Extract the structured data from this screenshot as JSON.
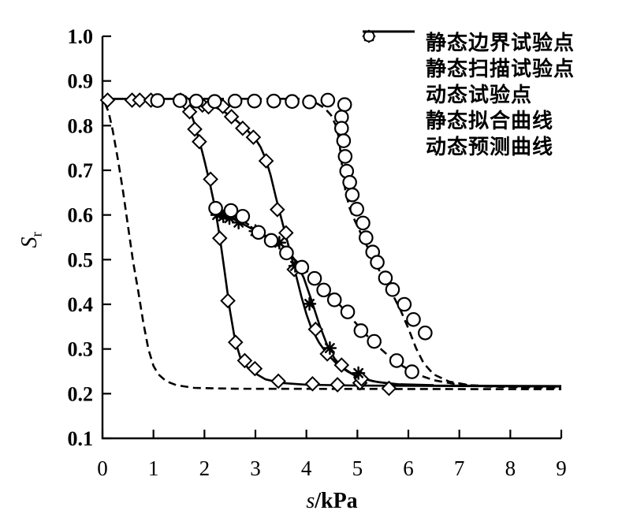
{
  "chart_data": {
    "type": "line",
    "title": "",
    "xlabel_italic": "s",
    "xlabel_unit": "/kPa",
    "ylabel_main": "S",
    "ylabel_sub": "r",
    "xlim": [
      0,
      9
    ],
    "ylim": [
      0.1,
      1.0
    ],
    "xticks": [
      0,
      1,
      2,
      3,
      4,
      5,
      6,
      7,
      8,
      9
    ],
    "xtick_labels": [
      "0",
      "1",
      "2",
      "3",
      "4",
      "5",
      "6",
      "7",
      "8",
      "9"
    ],
    "yticks": [
      0.1,
      0.2,
      0.3,
      0.4,
      0.5,
      0.6,
      0.7,
      0.8,
      0.9,
      1.0
    ],
    "ytick_labels": [
      "0.1",
      "0.2",
      "0.3",
      "0.4",
      "0.5",
      "0.6",
      "0.7",
      "0.8",
      "0.9",
      "1.0"
    ],
    "grid": false,
    "legend_position": "top-right-inside",
    "line_color": "#000000",
    "background_color": "#ffffff",
    "series": [
      {
        "name": "静态边界试验点",
        "kind": "scatter",
        "marker": "diamond",
        "points": [
          [
            0.1,
            0.857
          ],
          [
            0.58,
            0.857
          ],
          [
            0.73,
            0.857
          ],
          [
            0.95,
            0.857
          ],
          [
            1.53,
            0.857
          ],
          [
            1.63,
            0.851
          ],
          [
            1.71,
            0.831
          ],
          [
            1.81,
            0.792
          ],
          [
            1.9,
            0.764
          ],
          [
            2.12,
            0.68
          ],
          [
            2.3,
            0.548
          ],
          [
            2.46,
            0.408
          ],
          [
            2.61,
            0.315
          ],
          [
            2.79,
            0.274
          ],
          [
            2.99,
            0.256
          ],
          [
            3.45,
            0.228
          ],
          [
            4.12,
            0.222
          ],
          [
            4.61,
            0.22
          ],
          [
            5.05,
            0.224
          ],
          [
            5.62,
            0.212
          ],
          [
            1.96,
            0.846
          ],
          [
            2.08,
            0.842
          ],
          [
            2.36,
            0.843
          ],
          [
            2.53,
            0.82
          ],
          [
            2.75,
            0.794
          ],
          [
            2.96,
            0.774
          ],
          [
            3.21,
            0.721
          ],
          [
            3.43,
            0.612
          ],
          [
            3.6,
            0.56
          ],
          [
            3.76,
            0.478
          ],
          [
            4.18,
            0.344
          ],
          [
            4.41,
            0.289
          ],
          [
            4.69,
            0.264
          ],
          [
            5.08,
            0.233
          ]
        ]
      },
      {
        "name": "静态扫描试验点",
        "kind": "scatter",
        "marker": "asterisk",
        "points": [
          [
            2.25,
            0.6
          ],
          [
            2.37,
            0.597
          ],
          [
            2.49,
            0.593
          ],
          [
            2.67,
            0.583
          ],
          [
            3.0,
            0.564
          ],
          [
            3.47,
            0.538
          ],
          [
            3.78,
            0.486
          ],
          [
            4.06,
            0.401
          ],
          [
            4.46,
            0.302
          ],
          [
            5.02,
            0.246
          ]
        ]
      },
      {
        "name": "动态试验点",
        "kind": "scatter",
        "marker": "circle",
        "points": [
          [
            1.08,
            0.856
          ],
          [
            1.52,
            0.856
          ],
          [
            1.84,
            0.855
          ],
          [
            2.2,
            0.854
          ],
          [
            2.6,
            0.855
          ],
          [
            2.98,
            0.855
          ],
          [
            3.36,
            0.855
          ],
          [
            3.72,
            0.854
          ],
          [
            4.06,
            0.853
          ],
          [
            4.42,
            0.857
          ],
          [
            4.75,
            0.847
          ],
          [
            2.22,
            0.615
          ],
          [
            2.52,
            0.61
          ],
          [
            2.75,
            0.597
          ],
          [
            3.06,
            0.561
          ],
          [
            3.31,
            0.543
          ],
          [
            3.61,
            0.515
          ],
          [
            3.91,
            0.483
          ],
          [
            4.16,
            0.458
          ],
          [
            4.34,
            0.432
          ],
          [
            4.55,
            0.41
          ],
          [
            4.81,
            0.383
          ],
          [
            5.07,
            0.341
          ],
          [
            5.33,
            0.317
          ],
          [
            5.77,
            0.274
          ],
          [
            6.07,
            0.249
          ],
          [
            4.69,
            0.819
          ],
          [
            4.69,
            0.794
          ],
          [
            4.73,
            0.766
          ],
          [
            4.76,
            0.731
          ],
          [
            4.79,
            0.698
          ],
          [
            4.85,
            0.673
          ],
          [
            4.9,
            0.645
          ],
          [
            4.99,
            0.613
          ],
          [
            5.11,
            0.582
          ],
          [
            5.17,
            0.549
          ],
          [
            5.3,
            0.517
          ],
          [
            5.39,
            0.494
          ],
          [
            5.55,
            0.459
          ],
          [
            5.69,
            0.433
          ],
          [
            5.92,
            0.4
          ],
          [
            6.1,
            0.366
          ],
          [
            6.33,
            0.336
          ]
        ]
      },
      {
        "name": "静态拟合曲线",
        "kind": "line",
        "line_style": "solid",
        "branches": [
          [
            [
              0,
              0.86
            ],
            [
              1.5,
              0.86
            ],
            [
              1.6,
              0.856
            ],
            [
              1.7,
              0.84
            ],
            [
              1.8,
              0.806
            ],
            [
              1.9,
              0.766
            ],
            [
              2.0,
              0.722
            ],
            [
              2.1,
              0.674
            ],
            [
              2.2,
              0.62
            ],
            [
              2.3,
              0.552
            ],
            [
              2.4,
              0.47
            ],
            [
              2.5,
              0.386
            ],
            [
              2.6,
              0.32
            ],
            [
              2.7,
              0.282
            ],
            [
              2.85,
              0.258
            ],
            [
              3.0,
              0.245
            ],
            [
              3.2,
              0.232
            ],
            [
              3.5,
              0.224
            ],
            [
              4.0,
              0.22
            ],
            [
              5.0,
              0.218
            ],
            [
              9.0,
              0.216
            ]
          ],
          [
            [
              0,
              0.86
            ],
            [
              1.85,
              0.86
            ],
            [
              2.0,
              0.852
            ],
            [
              2.2,
              0.842
            ],
            [
              2.4,
              0.83
            ],
            [
              2.6,
              0.814
            ],
            [
              2.8,
              0.794
            ],
            [
              3.0,
              0.77
            ],
            [
              3.1,
              0.752
            ],
            [
              3.2,
              0.726
            ],
            [
              3.3,
              0.688
            ],
            [
              3.4,
              0.64
            ],
            [
              3.5,
              0.596
            ],
            [
              3.6,
              0.552
            ],
            [
              3.7,
              0.51
            ],
            [
              3.8,
              0.464
            ],
            [
              3.9,
              0.418
            ],
            [
              4.0,
              0.378
            ],
            [
              4.1,
              0.346
            ],
            [
              4.25,
              0.314
            ],
            [
              4.4,
              0.29
            ],
            [
              4.6,
              0.266
            ],
            [
              4.8,
              0.25
            ],
            [
              5.0,
              0.238
            ],
            [
              5.3,
              0.228
            ],
            [
              5.7,
              0.221
            ],
            [
              6.5,
              0.218
            ],
            [
              9.0,
              0.217
            ]
          ],
          [
            [
              2.22,
              0.618
            ],
            [
              2.35,
              0.604
            ],
            [
              2.55,
              0.592
            ],
            [
              2.75,
              0.58
            ],
            [
              2.95,
              0.568
            ],
            [
              3.15,
              0.556
            ],
            [
              3.35,
              0.545
            ],
            [
              3.5,
              0.535
            ],
            [
              3.65,
              0.519
            ],
            [
              3.8,
              0.495
            ],
            [
              3.95,
              0.459
            ],
            [
              4.1,
              0.409
            ],
            [
              4.25,
              0.356
            ],
            [
              4.4,
              0.311
            ],
            [
              4.55,
              0.279
            ],
            [
              4.7,
              0.259
            ],
            [
              4.9,
              0.244
            ],
            [
              5.1,
              0.234
            ],
            [
              5.4,
              0.226
            ],
            [
              5.8,
              0.221
            ],
            [
              6.5,
              0.219
            ]
          ]
        ]
      },
      {
        "name": "动态预测曲线",
        "kind": "line",
        "line_style": "dashed",
        "branches": [
          [
            [
              0.05,
              0.85
            ],
            [
              0.12,
              0.83
            ],
            [
              0.2,
              0.79
            ],
            [
              0.3,
              0.726
            ],
            [
              0.4,
              0.655
            ],
            [
              0.5,
              0.576
            ],
            [
              0.6,
              0.496
            ],
            [
              0.7,
              0.43
            ],
            [
              0.8,
              0.36
            ],
            [
              0.9,
              0.3
            ],
            [
              1.0,
              0.262
            ],
            [
              1.1,
              0.243
            ],
            [
              1.25,
              0.228
            ],
            [
              1.45,
              0.219
            ],
            [
              1.8,
              0.213
            ],
            [
              2.6,
              0.211
            ],
            [
              9.0,
              0.21
            ]
          ],
          [
            [
              0,
              0.86
            ],
            [
              3.9,
              0.86
            ],
            [
              4.05,
              0.856
            ],
            [
              4.2,
              0.85
            ],
            [
              4.35,
              0.84
            ],
            [
              4.48,
              0.824
            ],
            [
              4.58,
              0.8
            ],
            [
              4.64,
              0.77
            ],
            [
              4.68,
              0.73
            ],
            [
              4.72,
              0.69
            ],
            [
              4.77,
              0.65
            ],
            [
              4.85,
              0.615
            ],
            [
              4.96,
              0.585
            ],
            [
              5.1,
              0.551
            ],
            [
              5.25,
              0.516
            ],
            [
              5.4,
              0.482
            ],
            [
              5.55,
              0.451
            ],
            [
              5.7,
              0.42
            ],
            [
              5.85,
              0.386
            ],
            [
              6.0,
              0.346
            ],
            [
              6.15,
              0.302
            ],
            [
              6.3,
              0.268
            ],
            [
              6.5,
              0.243
            ],
            [
              6.8,
              0.227
            ],
            [
              7.2,
              0.219
            ],
            [
              8.0,
              0.215
            ],
            [
              9.0,
              0.213
            ]
          ],
          [
            [
              2.3,
              0.612
            ],
            [
              2.6,
              0.598
            ],
            [
              2.9,
              0.576
            ],
            [
              3.2,
              0.551
            ],
            [
              3.5,
              0.527
            ],
            [
              3.8,
              0.497
            ],
            [
              4.1,
              0.464
            ],
            [
              4.4,
              0.43
            ],
            [
              4.7,
              0.393
            ],
            [
              5.0,
              0.354
            ],
            [
              5.3,
              0.316
            ],
            [
              5.6,
              0.286
            ],
            [
              5.9,
              0.261
            ],
            [
              6.2,
              0.242
            ],
            [
              6.5,
              0.23
            ],
            [
              6.9,
              0.222
            ],
            [
              7.5,
              0.216
            ],
            [
              9.0,
              0.213
            ]
          ]
        ]
      }
    ]
  }
}
